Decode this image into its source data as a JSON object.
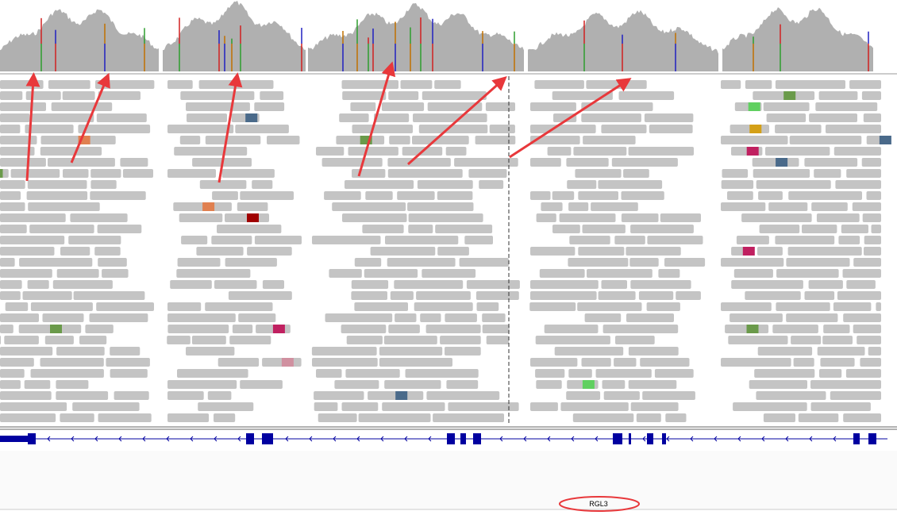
{
  "gene_track": {
    "label": "RGL3"
  }
}
